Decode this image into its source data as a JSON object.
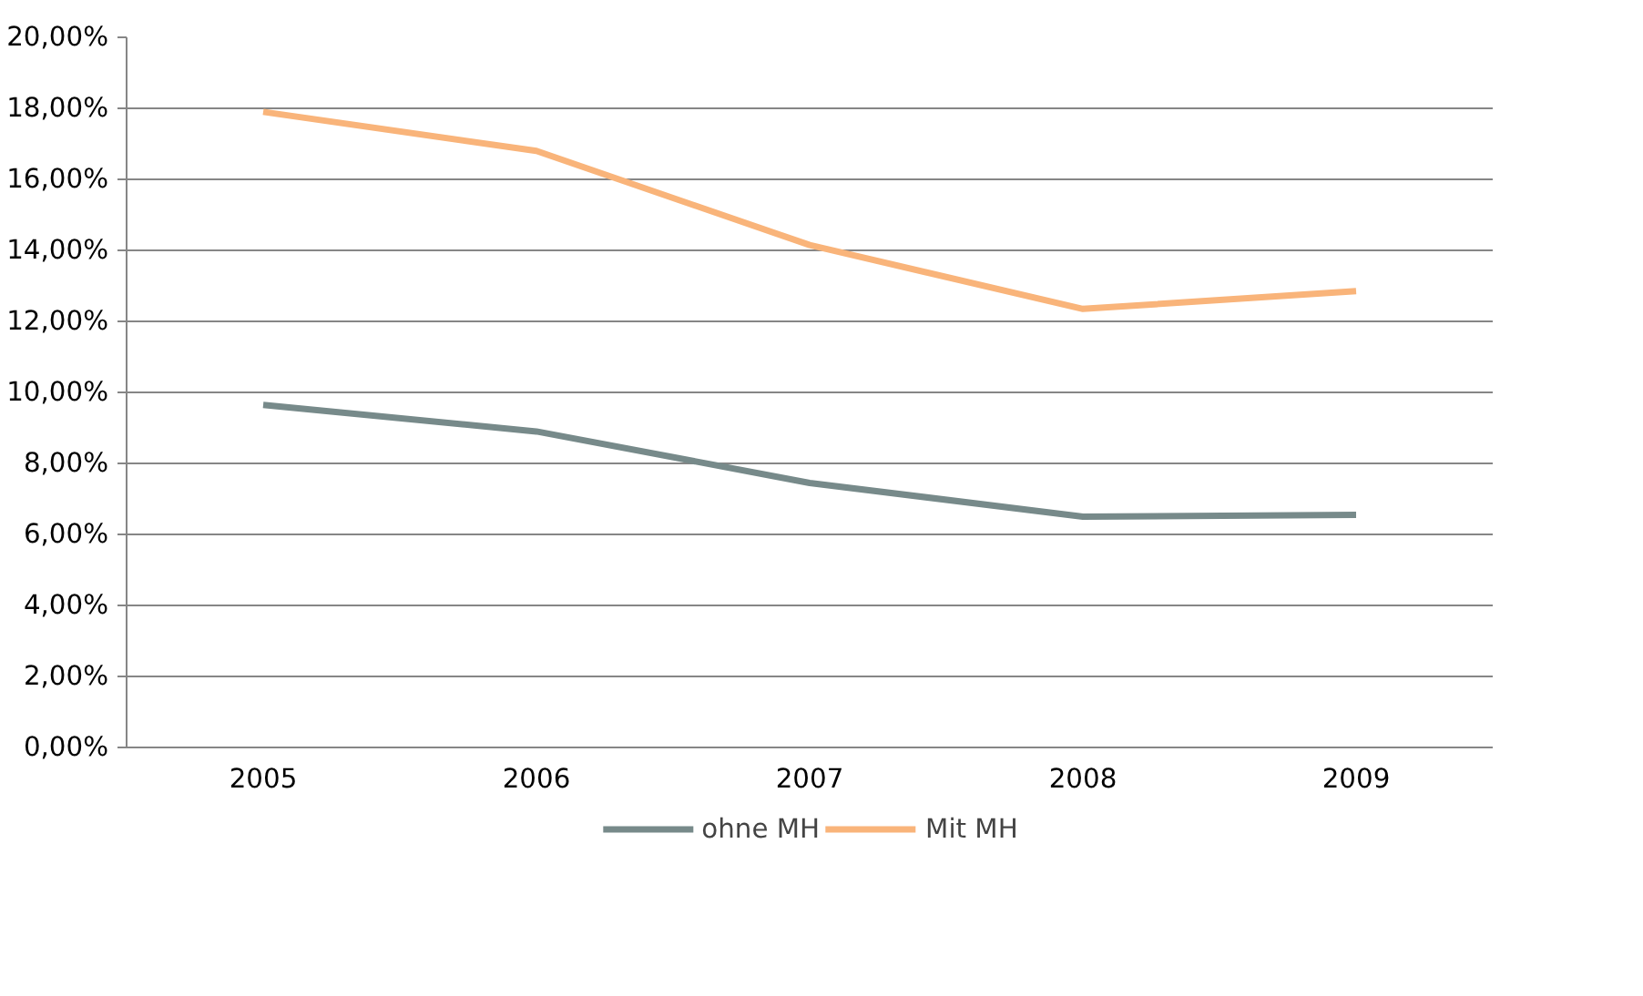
{
  "chart_data": {
    "type": "line",
    "categories": [
      "2005",
      "2006",
      "2007",
      "2008",
      "2009"
    ],
    "series": [
      {
        "name": "ohne MH",
        "color": "#778a8a",
        "values": [
          9.65,
          8.9,
          7.45,
          6.5,
          6.55
        ]
      },
      {
        "name": "Mit MH",
        "color": "#f9b47a",
        "values": [
          17.9,
          16.8,
          14.15,
          12.35,
          12.85
        ]
      }
    ],
    "ylim": [
      0,
      20
    ],
    "yticks": [
      {
        "value": 0,
        "label": "0,00%"
      },
      {
        "value": 2,
        "label": "2,00%"
      },
      {
        "value": 4,
        "label": "4,00%"
      },
      {
        "value": 6,
        "label": "6,00%"
      },
      {
        "value": 8,
        "label": "8,00%"
      },
      {
        "value": 10,
        "label": "10,00%"
      },
      {
        "value": 12,
        "label": "12,00%"
      },
      {
        "value": 14,
        "label": "14,00%"
      },
      {
        "value": 16,
        "label": "16,00%"
      },
      {
        "value": 18,
        "label": "18,00%"
      },
      {
        "value": 20,
        "label": "20,00%"
      }
    ],
    "grid": "y",
    "legend": "bottom",
    "marker": "none",
    "line_style": "solid"
  }
}
